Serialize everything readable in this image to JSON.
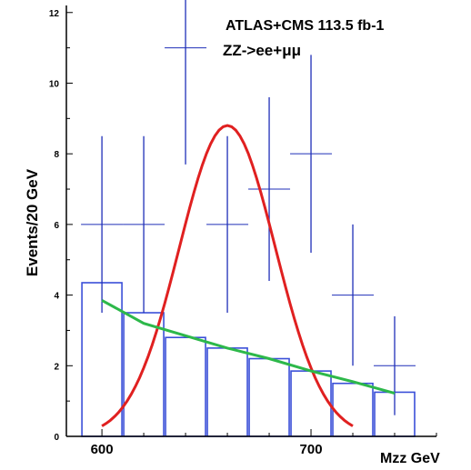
{
  "chart_data": {
    "type": "bar",
    "title": "ATLAS+CMS 113.5 fb-1",
    "subtitle": "ZZ->ee+μμ",
    "xlabel": "Mzz GeV",
    "ylabel": "Events/20 GeV",
    "xlim": [
      583,
      760
    ],
    "ylim": [
      0,
      12.2
    ],
    "x_ticks": [
      600,
      700
    ],
    "y_ticks": [
      0,
      2,
      4,
      6,
      8,
      10,
      12
    ],
    "bin_width": 20,
    "background_histogram": {
      "bins": [
        600,
        620,
        640,
        660,
        680,
        700,
        720,
        740
      ],
      "values": [
        4.35,
        3.5,
        2.8,
        2.5,
        2.2,
        1.85,
        1.5,
        1.25
      ]
    },
    "data_points": {
      "x": [
        600,
        620,
        640,
        660,
        680,
        700,
        720,
        740
      ],
      "y": [
        6.0,
        6.0,
        11.0,
        6.0,
        7.0,
        8.0,
        4.0,
        2.0
      ],
      "yerr_low": [
        2.5,
        2.5,
        3.3,
        2.5,
        2.6,
        2.8,
        2.0,
        1.4
      ],
      "yerr_high": [
        2.5,
        2.5,
        3.3,
        2.5,
        2.6,
        2.8,
        2.0,
        1.4
      ]
    },
    "signal_curve": {
      "peak_x": 660,
      "peak_y": 8.8,
      "sigma": 23,
      "x_range": [
        600,
        720
      ],
      "color": "#e02020"
    },
    "background_curve": {
      "x": [
        600,
        620,
        640,
        660,
        680,
        700,
        720,
        740
      ],
      "y": [
        3.85,
        3.2,
        2.85,
        2.5,
        2.2,
        1.85,
        1.55,
        1.22
      ],
      "color": "#2db84a"
    },
    "colors": {
      "histogram": "#3a4fd8",
      "data": "#1f2fb8",
      "axis": "#000000"
    }
  }
}
